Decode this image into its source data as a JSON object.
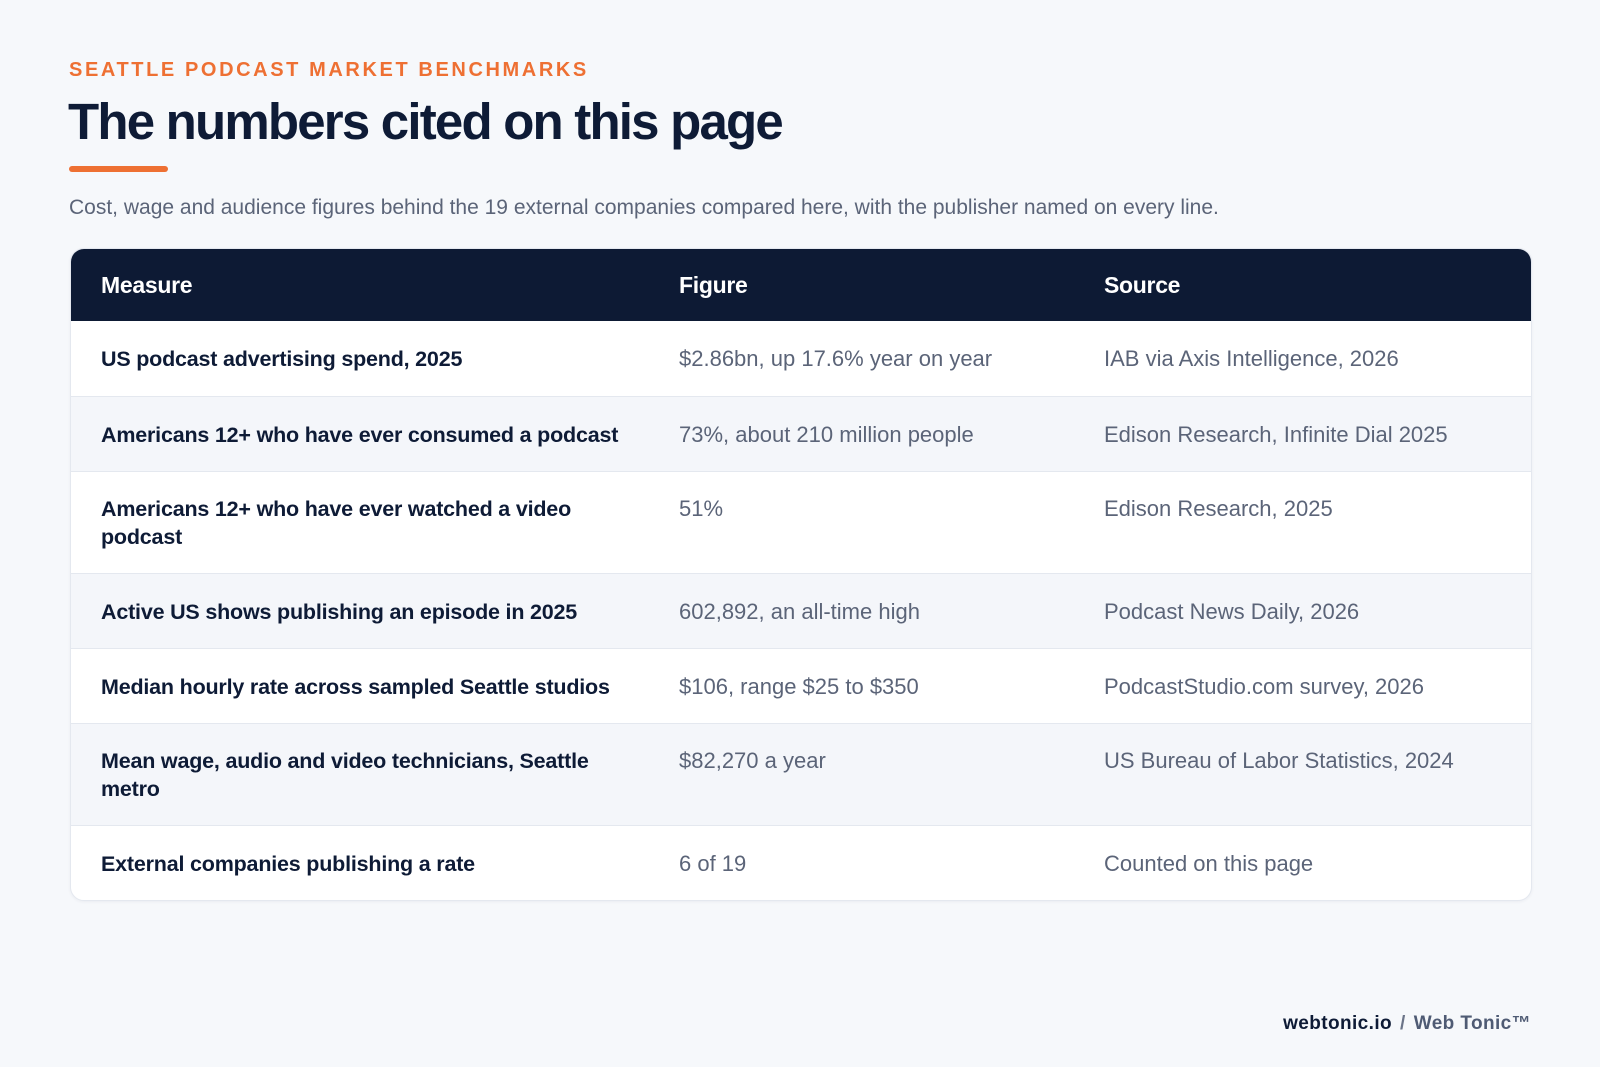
{
  "header": {
    "eyebrow": "SEATTLE PODCAST MARKET BENCHMARKS",
    "title": "The numbers cited on this page",
    "subtitle": "Cost, wage and audience figures behind the 19 external companies compared here, with the publisher named on every line."
  },
  "table": {
    "columns": [
      "Measure",
      "Figure",
      "Source"
    ],
    "rows": [
      {
        "measure": "US podcast advertising spend, 2025",
        "figure": "$2.86bn, up 17.6% year on year",
        "source": "IAB via Axis Intelligence, 2026"
      },
      {
        "measure": "Americans 12+ who have ever consumed a podcast",
        "figure": "73%, about 210 million people",
        "source": "Edison Research, Infinite Dial 2025"
      },
      {
        "measure": "Americans 12+ who have ever watched a video podcast",
        "figure": "51%",
        "source": "Edison Research, 2025"
      },
      {
        "measure": "Active US shows publishing an episode in 2025",
        "figure": "602,892, an all-time high",
        "source": "Podcast News Daily, 2026"
      },
      {
        "measure": "Median hourly rate across sampled Seattle studios",
        "figure": "$106, range $25 to $350",
        "source": "PodcastStudio.com survey, 2026"
      },
      {
        "measure": "Mean wage, audio and video technicians, Seattle metro",
        "figure": "$82,270 a year",
        "source": "US Bureau of Labor Statistics, 2024"
      },
      {
        "measure": "External companies publishing a rate",
        "figure": "6 of 19",
        "source": "Counted on this page"
      }
    ]
  },
  "footer": {
    "domain": "webtonic.io",
    "separator": "/",
    "brand": "Web Tonic™"
  },
  "colors": {
    "accent": "#ee7033",
    "header_bg": "#0d1a34",
    "title": "#0e1b36",
    "muted_text": "#5b6478",
    "page_bg": "#f6f8fb",
    "alt_row": "#f4f6fa"
  }
}
